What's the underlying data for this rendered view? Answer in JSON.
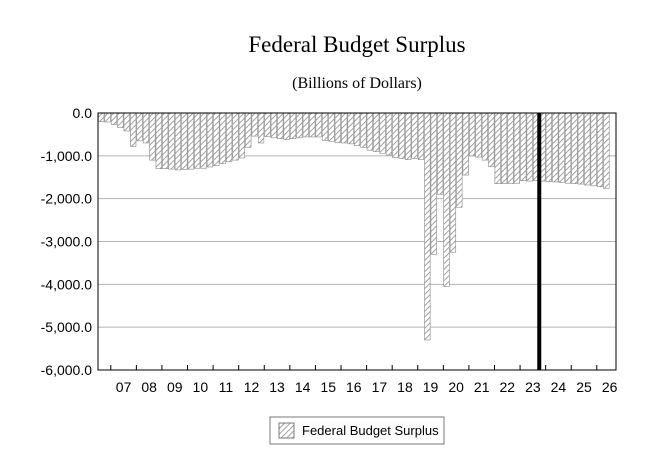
{
  "chart_data": {
    "type": "bar",
    "title": "Federal Budget Surplus",
    "subtitle": "(Billions of Dollars)",
    "xlabel": "",
    "ylabel": "",
    "ylim": [
      -6000,
      0
    ],
    "y_ticks": [
      0,
      -1000,
      -2000,
      -3000,
      -4000,
      -5000,
      -6000
    ],
    "y_tick_labels": [
      "0.0",
      "-1,000.0",
      "-2,000.0",
      "-3,000.0",
      "-4,000.0",
      "-5,000.0",
      "-6,000.0"
    ],
    "x_range": [
      2006.5,
      2026.75
    ],
    "x_tick_labels": [
      "07",
      "08",
      "09",
      "10",
      "11",
      "12",
      "13",
      "14",
      "15",
      "16",
      "17",
      "18",
      "19",
      "20",
      "21",
      "22",
      "23",
      "24",
      "25",
      "26"
    ],
    "x_tick_years": [
      2007,
      2008,
      2009,
      2010,
      2011,
      2012,
      2013,
      2014,
      2015,
      2016,
      2017,
      2018,
      2019,
      2020,
      2021,
      2022,
      2023,
      2024,
      2025,
      2026
    ],
    "frequency": "quarterly",
    "start_period": "2006Q3",
    "forecast_start_marker": 2023.75,
    "series": [
      {
        "name": "Federal Budget Surplus",
        "values": [
          -200,
          -210,
          -270,
          -340,
          -420,
          -780,
          -650,
          -700,
          -1100,
          -1300,
          -1300,
          -1310,
          -1330,
          -1320,
          -1310,
          -1290,
          -1290,
          -1260,
          -1230,
          -1180,
          -1140,
          -1100,
          -1050,
          -800,
          -540,
          -700,
          -550,
          -580,
          -600,
          -620,
          -600,
          -580,
          -560,
          -560,
          -560,
          -640,
          -660,
          -690,
          -700,
          -720,
          -760,
          -800,
          -870,
          -900,
          -940,
          -980,
          -1040,
          -1060,
          -1090,
          -1060,
          -1090,
          -5300,
          -3300,
          -1900,
          -4050,
          -3250,
          -2200,
          -1450,
          -1000,
          -1030,
          -1100,
          -1250,
          -1650,
          -1650,
          -1650,
          -1640,
          -1580,
          -1590,
          -1580,
          -1590,
          -1600,
          -1610,
          -1620,
          -1640,
          -1650,
          -1660,
          -1680,
          -1700,
          -1720,
          -1760
        ]
      }
    ],
    "legend": {
      "position": "bottom-center",
      "label": "Federal Budget Surplus"
    }
  }
}
